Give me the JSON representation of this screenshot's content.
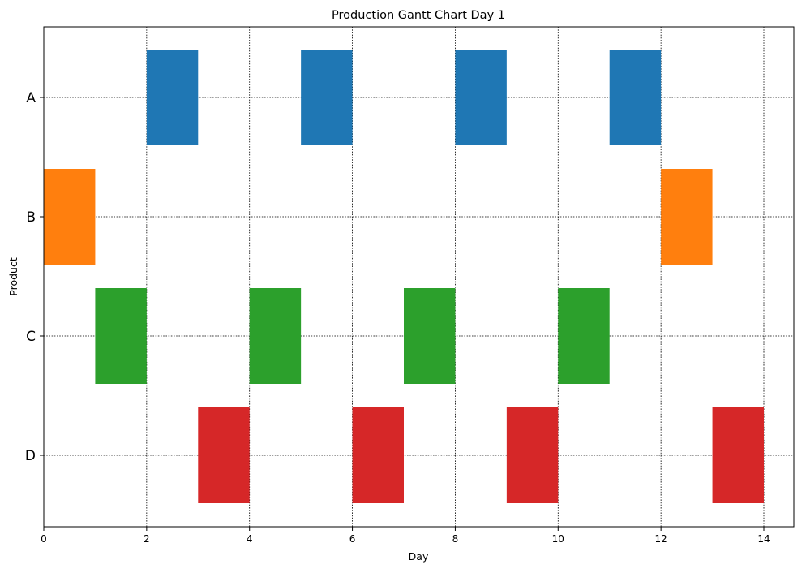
{
  "chart_data": {
    "type": "gantt",
    "title": "Production Gantt Chart Day 1",
    "xlabel": "Day",
    "ylabel": "Product",
    "xlim": [
      0,
      14.7
    ],
    "xticks": [
      0,
      2,
      4,
      6,
      8,
      10,
      12,
      14
    ],
    "categories": [
      "A",
      "B",
      "C",
      "D"
    ],
    "grid": true,
    "series": [
      {
        "category": "A",
        "color": "#1f77b4",
        "tasks": [
          {
            "start": 2,
            "end": 3
          },
          {
            "start": 5,
            "end": 6
          },
          {
            "start": 8,
            "end": 9
          },
          {
            "start": 11,
            "end": 12
          }
        ]
      },
      {
        "category": "B",
        "color": "#ff7f0e",
        "tasks": [
          {
            "start": 0,
            "end": 1
          },
          {
            "start": 12,
            "end": 13
          }
        ]
      },
      {
        "category": "C",
        "color": "#2ca02c",
        "tasks": [
          {
            "start": 1,
            "end": 2
          },
          {
            "start": 4,
            "end": 5
          },
          {
            "start": 7,
            "end": 8
          },
          {
            "start": 10,
            "end": 11
          }
        ]
      },
      {
        "category": "D",
        "color": "#d62728",
        "tasks": [
          {
            "start": 3,
            "end": 4
          },
          {
            "start": 6,
            "end": 7
          },
          {
            "start": 9,
            "end": 10
          },
          {
            "start": 13,
            "end": 14
          }
        ]
      }
    ]
  }
}
